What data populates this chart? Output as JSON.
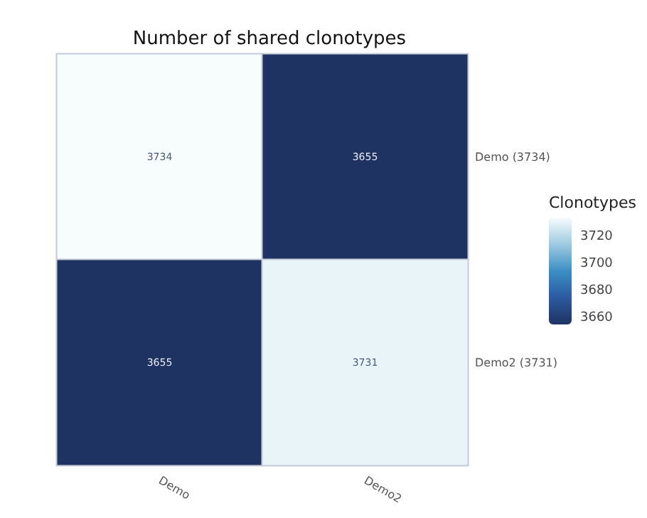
{
  "chart_data": {
    "type": "heatmap",
    "title": "Number of shared clonotypes",
    "categories": [
      "Demo",
      "Demo2"
    ],
    "y_categories": [
      null,
      null
    ],
    "y2_categories": [
      "Demo (3734)",
      "Demo2 (3731)"
    ],
    "cells": [
      [
        3734,
        3655
      ],
      [
        3655,
        3731
      ]
    ],
    "data_labels": true,
    "clabel": "Clonotypes",
    "clim": [
      3655,
      3734
    ],
    "cticks": [
      3660,
      3680,
      3700,
      3720
    ]
  }
}
